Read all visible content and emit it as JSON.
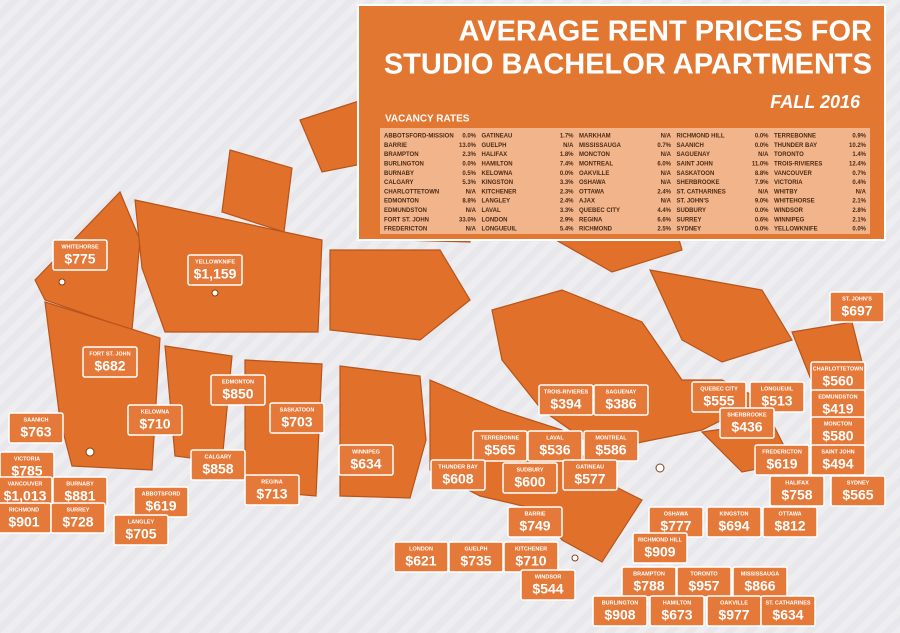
{
  "title": {
    "line1": "AVERAGE RENT PRICES FOR",
    "line2": "STUDIO BACHELOR APARTMENTS",
    "season": "FALL 2016"
  },
  "vacancy": {
    "heading": "VACANCY RATES",
    "columns": [
      [
        [
          "ABBOTSFORD-MISSION",
          "0.0%"
        ],
        [
          "BARRIE",
          "13.0%"
        ],
        [
          "BRAMPTON",
          "2.3%"
        ],
        [
          "BURLINGTON",
          "0.0%"
        ],
        [
          "BURNABY",
          "0.5%"
        ],
        [
          "CALGARY",
          "5.3%"
        ],
        [
          "CHARLOTTETOWN",
          "N/A"
        ],
        [
          "EDMONTON",
          "8.8%"
        ],
        [
          "EDMUNDSTON",
          "N/A"
        ],
        [
          "FORT ST. JOHN",
          "33.0%"
        ],
        [
          "FREDERICTON",
          "N/A"
        ]
      ],
      [
        [
          "GATINEAU",
          "1.7%"
        ],
        [
          "GUELPH",
          "N/A"
        ],
        [
          "HALIFAX",
          "1.8%"
        ],
        [
          "HAMILTON",
          "7.4%"
        ],
        [
          "KELOWNA",
          "0.0%"
        ],
        [
          "KINGSTON",
          "3.3%"
        ],
        [
          "KITCHENER",
          "2.3%"
        ],
        [
          "LANGLEY",
          "2.4%"
        ],
        [
          "LAVAL",
          "3.3%"
        ],
        [
          "LONDON",
          "2.9%"
        ],
        [
          "LONGUEUIL",
          "5.4%"
        ]
      ],
      [
        [
          "MARKHAM",
          "N/A"
        ],
        [
          "MISSISSAUGA",
          "0.7%"
        ],
        [
          "MONCTON",
          "N/A"
        ],
        [
          "MONTREAL",
          "6.0%"
        ],
        [
          "OAKVILLE",
          "N/A"
        ],
        [
          "OSHAWA",
          "N/A"
        ],
        [
          "OTTAWA",
          "2.4%"
        ],
        [
          "AJAX",
          "N/A"
        ],
        [
          "QUEBEC CITY",
          "4.4%"
        ],
        [
          "REGINA",
          "6.6%"
        ],
        [
          "RICHMOND",
          "2.5%"
        ]
      ],
      [
        [
          "RICHMOND HILL",
          "0.0%"
        ],
        [
          "SAANICH",
          "0.0%"
        ],
        [
          "SAGUENAY",
          "N/A"
        ],
        [
          "SAINT JOHN",
          "11.0%"
        ],
        [
          "SASKATOON",
          "8.8%"
        ],
        [
          "SHERBROOKE",
          "7.9%"
        ],
        [
          "ST. CATHARINES",
          "N/A"
        ],
        [
          "ST. JOHN'S",
          "9.0%"
        ],
        [
          "SUDBURY",
          "0.0%"
        ],
        [
          "SURREY",
          "0.6%"
        ],
        [
          "SYDNEY",
          "0.0%"
        ]
      ],
      [
        [
          "TERREBONNE",
          "0.9%"
        ],
        [
          "THUNDER BAY",
          "10.2%"
        ],
        [
          "TORONTO",
          "1.4%"
        ],
        [
          "TROIS-RIVIERES",
          "12.4%"
        ],
        [
          "VANCOUVER",
          "0.7%"
        ],
        [
          "VICTORIA",
          "0.4%"
        ],
        [
          "WHITBY",
          "N/A"
        ],
        [
          "WHITEHORSE",
          "2.1%"
        ],
        [
          "WINDSOR",
          "2.8%"
        ],
        [
          "WINNIPEG",
          "2.1%"
        ],
        [
          "YELLOWKNIFE",
          "0.0%"
        ]
      ]
    ]
  },
  "cities": [
    {
      "name": "WHITEHORSE",
      "price": "$775"
    },
    {
      "name": "YELLOWKNIFE",
      "price": "$1,159"
    },
    {
      "name": "FORT ST. JOHN",
      "price": "$682"
    },
    {
      "name": "EDMONTON",
      "price": "$850"
    },
    {
      "name": "SAANICH",
      "price": "$763"
    },
    {
      "name": "KELOWNA",
      "price": "$710"
    },
    {
      "name": "SASKATOON",
      "price": "$703"
    },
    {
      "name": "VICTORIA",
      "price": "$785"
    },
    {
      "name": "CALGARY",
      "price": "$858"
    },
    {
      "name": "WINNIPEG",
      "price": "$634"
    },
    {
      "name": "VANCOUVER",
      "price": "$1,013"
    },
    {
      "name": "BURNABY",
      "price": "$881"
    },
    {
      "name": "ABBOTSFORD",
      "price": "$619"
    },
    {
      "name": "REGINA",
      "price": "$713"
    },
    {
      "name": "RICHMOND",
      "price": "$901"
    },
    {
      "name": "SURREY",
      "price": "$728"
    },
    {
      "name": "LANGLEY",
      "price": "$705"
    },
    {
      "name": "TROIS-RIVIERES",
      "price": "$394"
    },
    {
      "name": "SAGUENAY",
      "price": "$386"
    },
    {
      "name": "TERREBONNE",
      "price": "$565"
    },
    {
      "name": "LAVAL",
      "price": "$536"
    },
    {
      "name": "MONTREAL",
      "price": "$586"
    },
    {
      "name": "THUNDER BAY",
      "price": "$608"
    },
    {
      "name": "SUDBURY",
      "price": "$600"
    },
    {
      "name": "GATINEAU",
      "price": "$577"
    },
    {
      "name": "QUEBEC CITY",
      "price": "$555"
    },
    {
      "name": "LONGUEUIL",
      "price": "$513"
    },
    {
      "name": "SHERBROOKE",
      "price": "$436"
    },
    {
      "name": "ST. JOHN'S",
      "price": "$697"
    },
    {
      "name": "CHARLOTTETOWN",
      "price": "$560"
    },
    {
      "name": "EDMUNDSTON",
      "price": "$419"
    },
    {
      "name": "MONCTON",
      "price": "$580"
    },
    {
      "name": "FREDERICTON",
      "price": "$619"
    },
    {
      "name": "SAINT JOHN",
      "price": "$494"
    },
    {
      "name": "HALIFAX",
      "price": "$758"
    },
    {
      "name": "SYDNEY",
      "price": "$565"
    },
    {
      "name": "BARRIE",
      "price": "$749"
    },
    {
      "name": "OSHAWA",
      "price": "$777"
    },
    {
      "name": "KINGSTON",
      "price": "$694"
    },
    {
      "name": "OTTAWA",
      "price": "$812"
    },
    {
      "name": "RICHMOND HILL",
      "price": "$909"
    },
    {
      "name": "LONDON",
      "price": "$621"
    },
    {
      "name": "GUELPH",
      "price": "$735"
    },
    {
      "name": "KITCHENER",
      "price": "$710"
    },
    {
      "name": "WINDSOR",
      "price": "$544"
    },
    {
      "name": "BRAMPTON",
      "price": "$788"
    },
    {
      "name": "TORONTO",
      "price": "$957"
    },
    {
      "name": "MISSISSAUGA",
      "price": "$866"
    },
    {
      "name": "BURLINGTON",
      "price": "$908"
    },
    {
      "name": "HAMILTON",
      "price": "$673"
    },
    {
      "name": "OAKVILLE",
      "price": "$977"
    },
    {
      "name": "ST. CATHARINES",
      "price": "$634"
    }
  ]
}
